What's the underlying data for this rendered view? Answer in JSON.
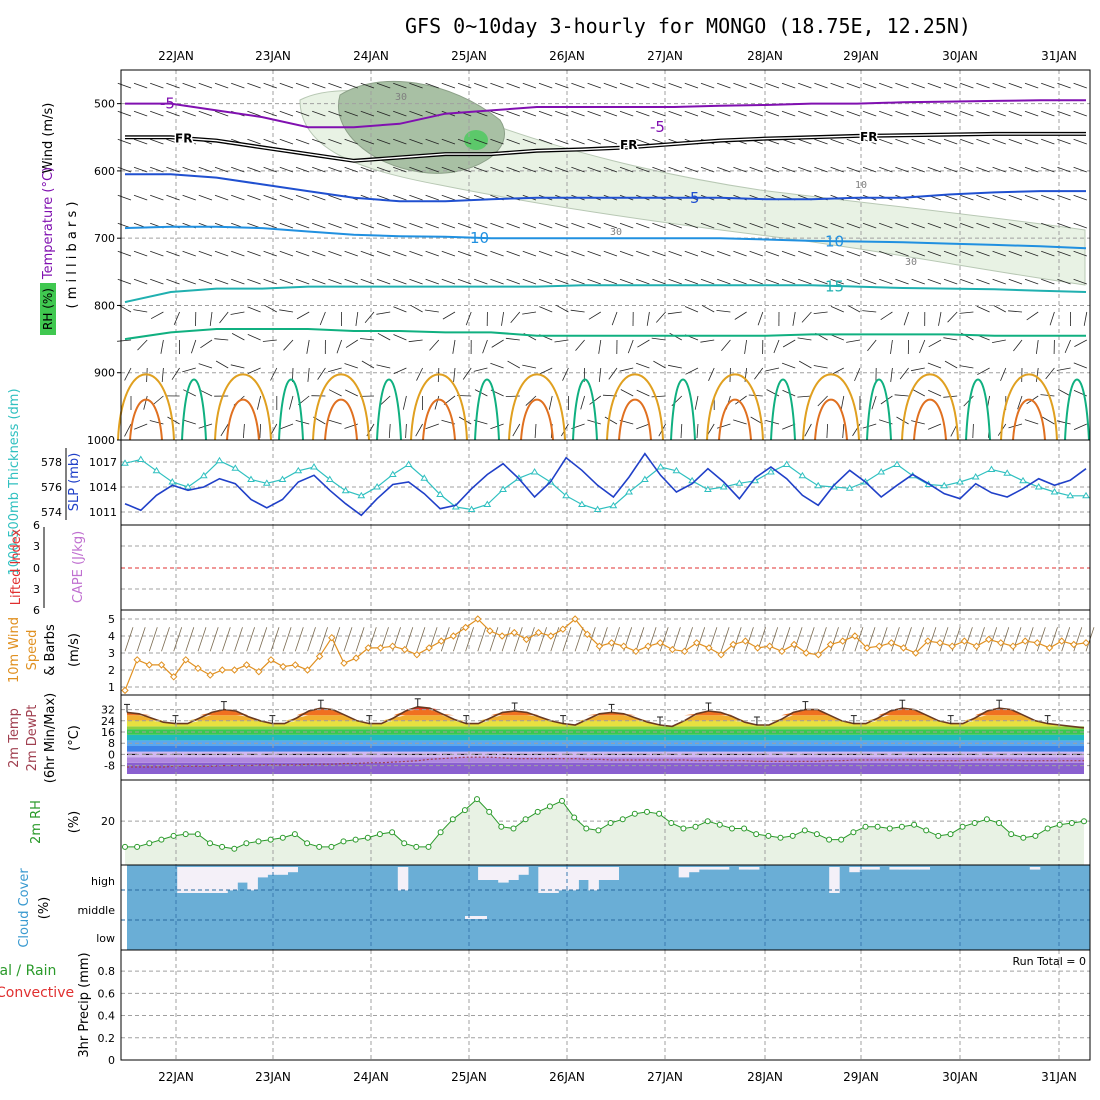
{
  "title": "GFS 0~10day 3-hourly for MONGO (18.75E, 12.25N)",
  "colors": {
    "thickness": "#30c0c0",
    "slp": "#2040c8",
    "temp_purple": "#8010b0",
    "freezing": "#000000",
    "temp_blue": "#2050d0",
    "temp_lightblue": "#2090e0",
    "temp_teal": "#20b0b0",
    "temp_green": "#10b080",
    "temp_orange": "#e0a020",
    "wind10": "#e09020",
    "rh_fill": "#e8f2e4",
    "rh_line": "#2a9a2a",
    "cloud": "#6aaed6",
    "lifted": "#e03030"
  },
  "chart_data": [
    {
      "panel": "upper-air",
      "type": "contour",
      "ylabel_parts": [
        "RH (%)",
        "Temperature (°C)",
        "Wind (m/s)"
      ],
      "yunit": "( m i l l i b a r s )",
      "ylim": [
        1000,
        450
      ],
      "yticks": [
        "500",
        "600",
        "700",
        "800",
        "900",
        "1000"
      ],
      "x": [
        "22JAN",
        "23JAN",
        "24JAN",
        "25JAN",
        "26JAN",
        "27JAN",
        "28JAN",
        "29JAN",
        "30JAN",
        "31JAN"
      ],
      "isotherms": [
        {
          "label": "-5",
          "values": [
            500,
            500,
            510,
            520,
            535,
            535,
            530,
            515,
            510,
            505,
            505,
            505,
            505,
            503,
            502,
            500,
            500,
            498,
            497,
            496,
            495,
            495
          ]
        },
        {
          "label": "FR",
          "values": [
            550,
            550,
            555,
            565,
            575,
            585,
            580,
            575,
            575,
            570,
            568,
            565,
            560,
            555,
            552,
            550,
            548,
            547,
            546,
            545,
            545,
            545
          ]
        },
        {
          "label": "5",
          "values": [
            605,
            605,
            610,
            620,
            630,
            640,
            645,
            645,
            642,
            640,
            640,
            640,
            640,
            640,
            642,
            642,
            640,
            640,
            635,
            632,
            630,
            630
          ]
        },
        {
          "label": "10",
          "values": [
            685,
            683,
            683,
            685,
            690,
            695,
            697,
            698,
            700,
            700,
            700,
            700,
            700,
            700,
            702,
            704,
            705,
            706,
            708,
            710,
            712,
            715
          ]
        },
        {
          "label": "15",
          "values": [
            795,
            780,
            775,
            775,
            772,
            772,
            772,
            772,
            772,
            772,
            770,
            770,
            770,
            770,
            770,
            770,
            772,
            774,
            775,
            776,
            778,
            780
          ]
        },
        {
          "label": "",
          "values": [
            850,
            840,
            835,
            835,
            835,
            838,
            838,
            840,
            840,
            845,
            845,
            845,
            845,
            845,
            845,
            843,
            843,
            843,
            843,
            845,
            845,
            845
          ]
        }
      ],
      "rh_contour_labels": [
        "30",
        "30",
        "30",
        "10"
      ]
    },
    {
      "panel": "thickness-slp",
      "type": "line",
      "ylabel_left": "1000-500mb Thickness (dm)",
      "ylabel_right": "SLP (mb)",
      "left_ticks": [
        "578",
        "576",
        "574"
      ],
      "right_ticks": [
        "1017",
        "1014",
        "1011"
      ],
      "series": [
        {
          "name": "Thickness",
          "values": [
            577.9,
            578.2,
            577.3,
            576.4,
            576.0,
            576.9,
            578.1,
            577.5,
            576.6,
            576.3,
            576.6,
            577.3,
            577.6,
            576.6,
            575.7,
            575.3,
            576.0,
            577.0,
            577.8,
            576.7,
            575.4,
            574.4,
            574.2,
            574.6,
            575.8,
            576.7,
            577.2,
            576.4,
            575.3,
            574.6,
            574.2,
            574.5,
            575.6,
            576.6,
            577.6,
            577.3,
            576.5,
            575.8,
            576.0,
            576.3,
            576.5,
            577.2,
            577.8,
            576.9,
            576.1,
            576.0,
            575.9,
            576.4,
            577.2,
            577.8,
            576.9,
            576.2,
            576.1,
            576.4,
            576.8,
            577.4,
            577.1,
            576.5,
            576.0,
            575.6,
            575.3,
            575.3
          ]
        },
        {
          "name": "SLP",
          "values": [
            1012.0,
            1011.2,
            1013.0,
            1014.2,
            1013.6,
            1014.0,
            1015.0,
            1014.4,
            1012.5,
            1011.5,
            1012.5,
            1014.6,
            1015.4,
            1013.6,
            1012.0,
            1010.6,
            1012.6,
            1014.3,
            1014.6,
            1013.2,
            1011.4,
            1011.8,
            1013.8,
            1015.5,
            1016.8,
            1015.0,
            1012.8,
            1014.6,
            1017.5,
            1016.0,
            1014.2,
            1012.8,
            1015.2,
            1018.0,
            1015.4,
            1013.4,
            1014.4,
            1016.2,
            1014.6,
            1012.6,
            1015.1,
            1016.4,
            1015.0,
            1013.0,
            1011.8,
            1014.2,
            1016.0,
            1014.6,
            1012.8,
            1014.2,
            1015.5,
            1014.4,
            1013.2,
            1012.6,
            1014.4,
            1013.3,
            1012.8,
            1013.8,
            1015.0,
            1014.2,
            1014.8,
            1016.2
          ]
        }
      ]
    },
    {
      "panel": "lifted-cape",
      "type": "line",
      "ylabel_left": "Lifted Index",
      "ylabel_right": "CAPE (J/kg)",
      "ticks": [
        "6",
        "3",
        "0",
        "3",
        "6"
      ],
      "lifted_index_line": 0
    },
    {
      "panel": "wind10m",
      "type": "line",
      "ylabel": "10m Wind Speed & Barbs (m/s)",
      "ylabel_parts": [
        "10m Wind",
        "Speed",
        "& Barbs",
        "(m/s)"
      ],
      "yticks": [
        "1",
        "2",
        "3",
        "4",
        "5"
      ],
      "ylim": [
        0.6,
        5.4
      ],
      "series": [
        {
          "name": "Speed",
          "values": [
            0.8,
            2.6,
            2.3,
            2.3,
            1.6,
            2.6,
            2.1,
            1.7,
            2.0,
            2.0,
            2.3,
            1.9,
            2.6,
            2.2,
            2.3,
            2.0,
            2.8,
            3.9,
            2.4,
            2.7,
            3.3,
            3.3,
            3.4,
            3.2,
            2.9,
            3.3,
            3.7,
            4.0,
            4.5,
            5.0,
            4.3,
            4.0,
            4.2,
            3.8,
            4.2,
            4.0,
            4.4,
            5.0,
            4.1,
            3.4,
            3.6,
            3.4,
            3.1,
            3.4,
            3.6,
            3.2,
            3.1,
            3.6,
            3.3,
            2.9,
            3.5,
            3.7,
            3.3,
            3.4,
            3.1,
            3.5,
            3.0,
            2.9,
            3.5,
            3.7,
            4.0,
            3.3,
            3.4,
            3.6,
            3.3,
            3.0,
            3.7,
            3.6,
            3.4,
            3.7,
            3.4,
            3.8,
            3.6,
            3.4,
            3.7,
            3.6,
            3.3,
            3.7,
            3.5,
            3.6
          ]
        }
      ]
    },
    {
      "panel": "temp2m",
      "type": "area",
      "ylabel_parts": [
        "2m Temp",
        "2m DewPt",
        "(6hr Min/Max)",
        "(°C)"
      ],
      "yticks": [
        "32",
        "24",
        "16",
        "8",
        "0",
        "-8"
      ],
      "ylim": [
        -14,
        36
      ],
      "series": [
        {
          "name": "2m Temp",
          "values": [
            30,
            29,
            26,
            23,
            22,
            22,
            26,
            30,
            32,
            31,
            27,
            24,
            22,
            22,
            26,
            31,
            33,
            32,
            28,
            24,
            22,
            22,
            26,
            31,
            34,
            33,
            29,
            25,
            22,
            22,
            26,
            30,
            31,
            30,
            27,
            24,
            22,
            21,
            25,
            29,
            30,
            29,
            26,
            23,
            21,
            20,
            24,
            29,
            31,
            30,
            27,
            23,
            21,
            21,
            25,
            30,
            32,
            32,
            28,
            24,
            22,
            22,
            26,
            31,
            33,
            32,
            28,
            24,
            22,
            22,
            26,
            31,
            33,
            32,
            28,
            24,
            22,
            21,
            20,
            19
          ]
        },
        {
          "name": "2m DewPt",
          "values": [
            -9,
            -9,
            -9,
            -9,
            -8.5,
            -8.5,
            -8.5,
            -8.5,
            -8,
            -8,
            -8,
            -7.5,
            -7.5,
            -7.5,
            -7.5,
            -7,
            -7,
            -7,
            -6.5,
            -6.5,
            -6,
            -6,
            -5.5,
            -5,
            -4.5,
            -3.5,
            -3,
            -2.5,
            -2,
            -2,
            -2,
            -2.5,
            -3,
            -3,
            -3,
            -3,
            -3,
            -3,
            -3.5,
            -3.5,
            -4,
            -4,
            -4,
            -4,
            -4,
            -4,
            -4,
            -4.5,
            -4.5,
            -4.5,
            -4.5,
            -4.5,
            -5,
            -5,
            -5,
            -5,
            -5,
            -5,
            -4.5,
            -4.5,
            -4,
            -4,
            -4,
            -4,
            -4,
            -4,
            -4.5,
            -4.5,
            -4.5,
            -4.5,
            -4,
            -4,
            -4,
            -4,
            -4.5,
            -4.5,
            -4.5,
            -4.5,
            -4.5,
            -4.5
          ]
        }
      ]
    },
    {
      "panel": "rh2m",
      "type": "area",
      "ylabel_parts": [
        "2m RH",
        "(%)"
      ],
      "yticks": [
        "20"
      ],
      "ylim": [
        0,
        38
      ],
      "series": [
        {
          "name": "2m RH",
          "values": [
            6,
            6,
            8,
            10,
            12,
            13,
            13,
            8,
            6,
            5,
            8,
            9,
            10,
            11,
            13,
            8,
            6,
            6,
            9,
            10,
            11,
            13,
            14,
            8,
            6,
            6,
            14,
            21,
            26,
            32,
            25,
            17,
            16,
            21,
            25,
            28,
            31,
            22,
            16,
            15,
            19,
            21,
            24,
            25,
            24,
            19,
            16,
            17,
            20,
            18,
            16,
            16,
            13,
            12,
            11,
            12,
            15,
            13,
            10,
            10,
            14,
            17,
            17,
            16,
            17,
            18,
            15,
            12,
            13,
            17,
            19,
            21,
            19,
            13,
            11,
            12,
            16,
            18,
            19,
            20
          ]
        }
      ]
    },
    {
      "panel": "cloud",
      "type": "bar",
      "ylabel_parts": [
        "Cloud Cover",
        "(%)"
      ],
      "levels": [
        "high",
        "middle",
        "low"
      ],
      "high_layer": [
        0,
        0,
        0,
        0,
        0,
        1.0,
        1.0,
        1.0,
        1.0,
        1.0,
        0.9,
        0.6,
        0.9,
        0.4,
        0.3,
        0.3,
        0.2,
        0,
        0,
        0,
        0,
        0,
        0,
        0,
        0,
        0,
        0,
        0.9,
        0,
        0,
        0,
        0,
        0,
        0,
        0,
        0.5,
        0.5,
        0.6,
        0.5,
        0.3,
        0,
        1.0,
        1.0,
        0.9,
        0.9,
        0.5,
        0.9,
        0.5,
        0.5,
        0,
        0,
        0,
        0,
        0,
        0,
        0.4,
        0.2,
        0.1,
        0.1,
        0.1,
        0,
        0.1,
        0.1,
        0,
        0,
        0,
        0,
        0,
        0,
        0,
        1.0,
        0,
        0.2,
        0.1,
        0.1,
        0,
        0.1,
        0.1,
        0.1,
        0.1,
        0,
        0,
        0,
        0,
        0,
        0,
        0,
        0,
        0,
        0,
        0.1,
        0,
        0,
        0,
        0,
        0
      ],
      "middle_layer_note": "small white bar near 25JAN"
    },
    {
      "panel": "precip",
      "type": "bar",
      "ylabel": "3hr Precip (mm)",
      "legend_left": [
        "tal / Rain",
        "Convective"
      ],
      "yticks": [
        "0",
        "0.2",
        "0.4",
        "0.6",
        "0.8"
      ],
      "ylim": [
        0,
        1.0
      ],
      "annotation": "Run Total = 0",
      "values": []
    }
  ]
}
